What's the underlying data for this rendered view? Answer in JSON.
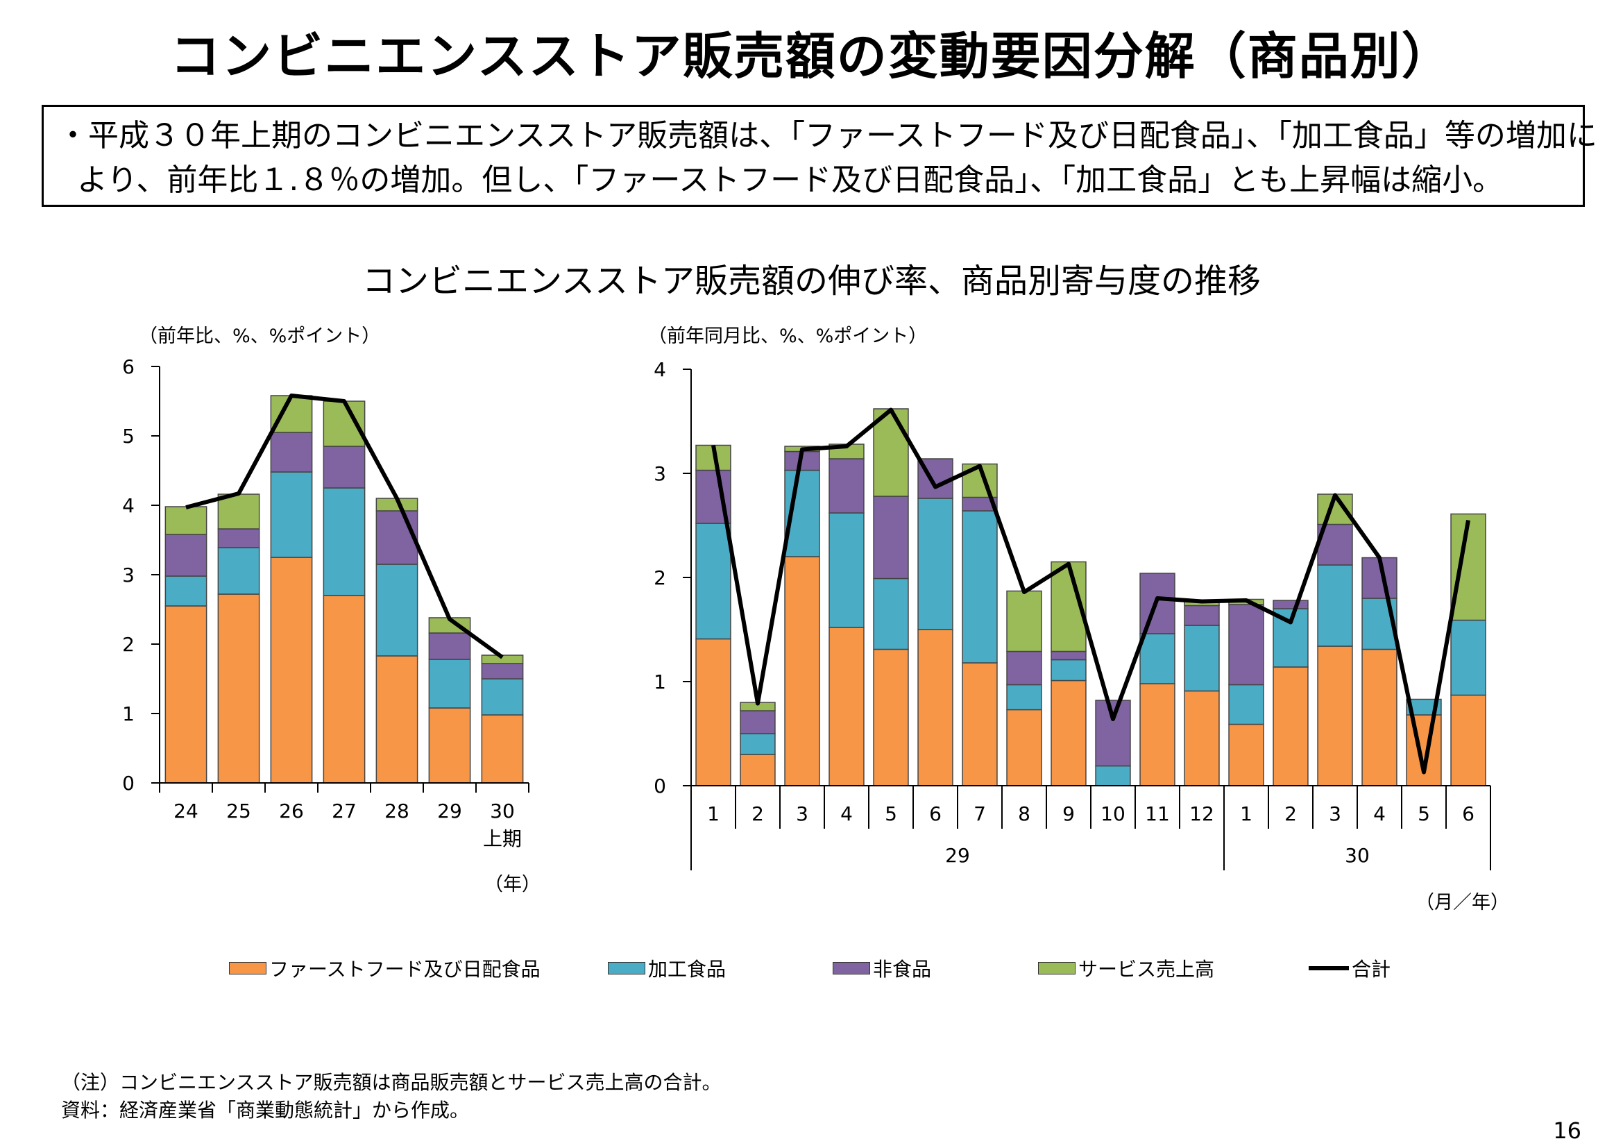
{
  "page": {
    "title": "コンビニエンスストア販売額の変動要因分解（商品別）",
    "summary_lines": [
      "・平成３０年上期のコンビニエンスストア販売額は、「ファーストフード及び日配食品」、「加工食品」等の増加に",
      "より、前年比１.８％の増加。但し、「ファーストフード及び日配食品」、「加工食品」とも上昇幅は縮小。"
    ],
    "chart_title": "コンビニエンスストア販売額の伸び率、商品別寄与度の推移",
    "notes": [
      "（注）コンビニエンスストア販売額は商品販売額とサービス売上高の合計。",
      "資料：経済産業省「商業動態統計」から作成。"
    ],
    "page_number": "16"
  },
  "legend": {
    "items": [
      {
        "label": "ファーストフード及び日配食品",
        "color": "#F79646"
      },
      {
        "label": "加工食品",
        "color": "#4BACC6"
      },
      {
        "label": "非食品",
        "color": "#8064A2"
      },
      {
        "label": "サービス売上高",
        "color": "#9BBB59"
      },
      {
        "label": "合計",
        "color": "#000000"
      }
    ]
  },
  "chart_data": [
    {
      "type": "bar",
      "stacked": true,
      "unit_label": "（前年比、%、%ポイント）",
      "x_unit": "（年）",
      "categories": [
        "24",
        "25",
        "26",
        "27",
        "28",
        "29",
        "30"
      ],
      "category_sublabels": [
        "",
        "",
        "",
        "",
        "",
        "",
        "上期"
      ],
      "ylim": [
        0,
        6
      ],
      "yticks": [
        0,
        1,
        2,
        3,
        4,
        5,
        6
      ],
      "series": [
        {
          "name": "ファーストフード及び日配食品",
          "color": "#F79646",
          "values": [
            2.55,
            2.72,
            3.25,
            2.7,
            1.83,
            1.08,
            0.98
          ]
        },
        {
          "name": "加工食品",
          "color": "#4BACC6",
          "values": [
            0.43,
            0.67,
            1.23,
            1.55,
            1.32,
            0.7,
            0.52
          ]
        },
        {
          "name": "非食品",
          "color": "#8064A2",
          "values": [
            0.6,
            0.27,
            0.57,
            0.6,
            0.77,
            0.38,
            0.22
          ]
        },
        {
          "name": "サービス売上高",
          "color": "#9BBB59",
          "values": [
            0.4,
            0.5,
            0.53,
            0.65,
            0.18,
            0.22,
            0.12
          ]
        }
      ],
      "total": {
        "name": "合計",
        "color": "#000000",
        "values": [
          3.97,
          4.17,
          5.58,
          5.5,
          4.1,
          2.36,
          1.81
        ]
      }
    },
    {
      "type": "bar",
      "stacked": true,
      "unit_label": "（前年同月比、%、%ポイント）",
      "x_unit": "（月／年）",
      "categories": [
        "1",
        "2",
        "3",
        "4",
        "5",
        "6",
        "7",
        "8",
        "9",
        "10",
        "11",
        "12",
        "1",
        "2",
        "3",
        "4",
        "5",
        "6"
      ],
      "groups": [
        {
          "label": "29",
          "start": 0,
          "end": 12
        },
        {
          "label": "30",
          "start": 12,
          "end": 18
        }
      ],
      "ylim": [
        0,
        4
      ],
      "yticks": [
        0,
        1,
        2,
        3,
        4
      ],
      "series": [
        {
          "name": "ファーストフード及び日配食品",
          "color": "#F79646",
          "values": [
            1.41,
            0.3,
            2.2,
            1.52,
            1.31,
            1.5,
            1.18,
            0.73,
            1.01,
            0.0,
            0.98,
            0.91,
            0.59,
            1.14,
            1.34,
            1.31,
            0.68,
            0.87
          ]
        },
        {
          "name": "加工食品",
          "color": "#4BACC6",
          "values": [
            1.11,
            0.2,
            0.83,
            1.1,
            0.68,
            1.26,
            1.46,
            0.24,
            0.2,
            0.19,
            0.48,
            0.63,
            0.38,
            0.56,
            0.78,
            0.49,
            0.15,
            0.72
          ]
        },
        {
          "name": "非食品",
          "color": "#8064A2",
          "values": [
            0.51,
            0.22,
            0.18,
            0.52,
            0.79,
            0.38,
            0.13,
            0.32,
            0.08,
            0.63,
            0.58,
            0.19,
            0.77,
            0.08,
            0.39,
            0.39,
            0.0,
            0.0
          ]
        },
        {
          "name": "サービス売上高",
          "color": "#9BBB59",
          "values": [
            0.24,
            0.08,
            0.05,
            0.14,
            0.84,
            0.0,
            0.32,
            0.58,
            0.86,
            0.0,
            0.0,
            0.05,
            0.05,
            0.0,
            0.29,
            0.0,
            0.0,
            1.02
          ]
        }
      ],
      "total": {
        "name": "合計",
        "color": "#000000",
        "values": [
          3.27,
          0.79,
          3.23,
          3.26,
          3.61,
          2.87,
          3.07,
          1.86,
          2.13,
          0.64,
          1.8,
          1.77,
          1.78,
          1.57,
          2.79,
          2.19,
          0.13,
          2.55
        ]
      }
    }
  ]
}
